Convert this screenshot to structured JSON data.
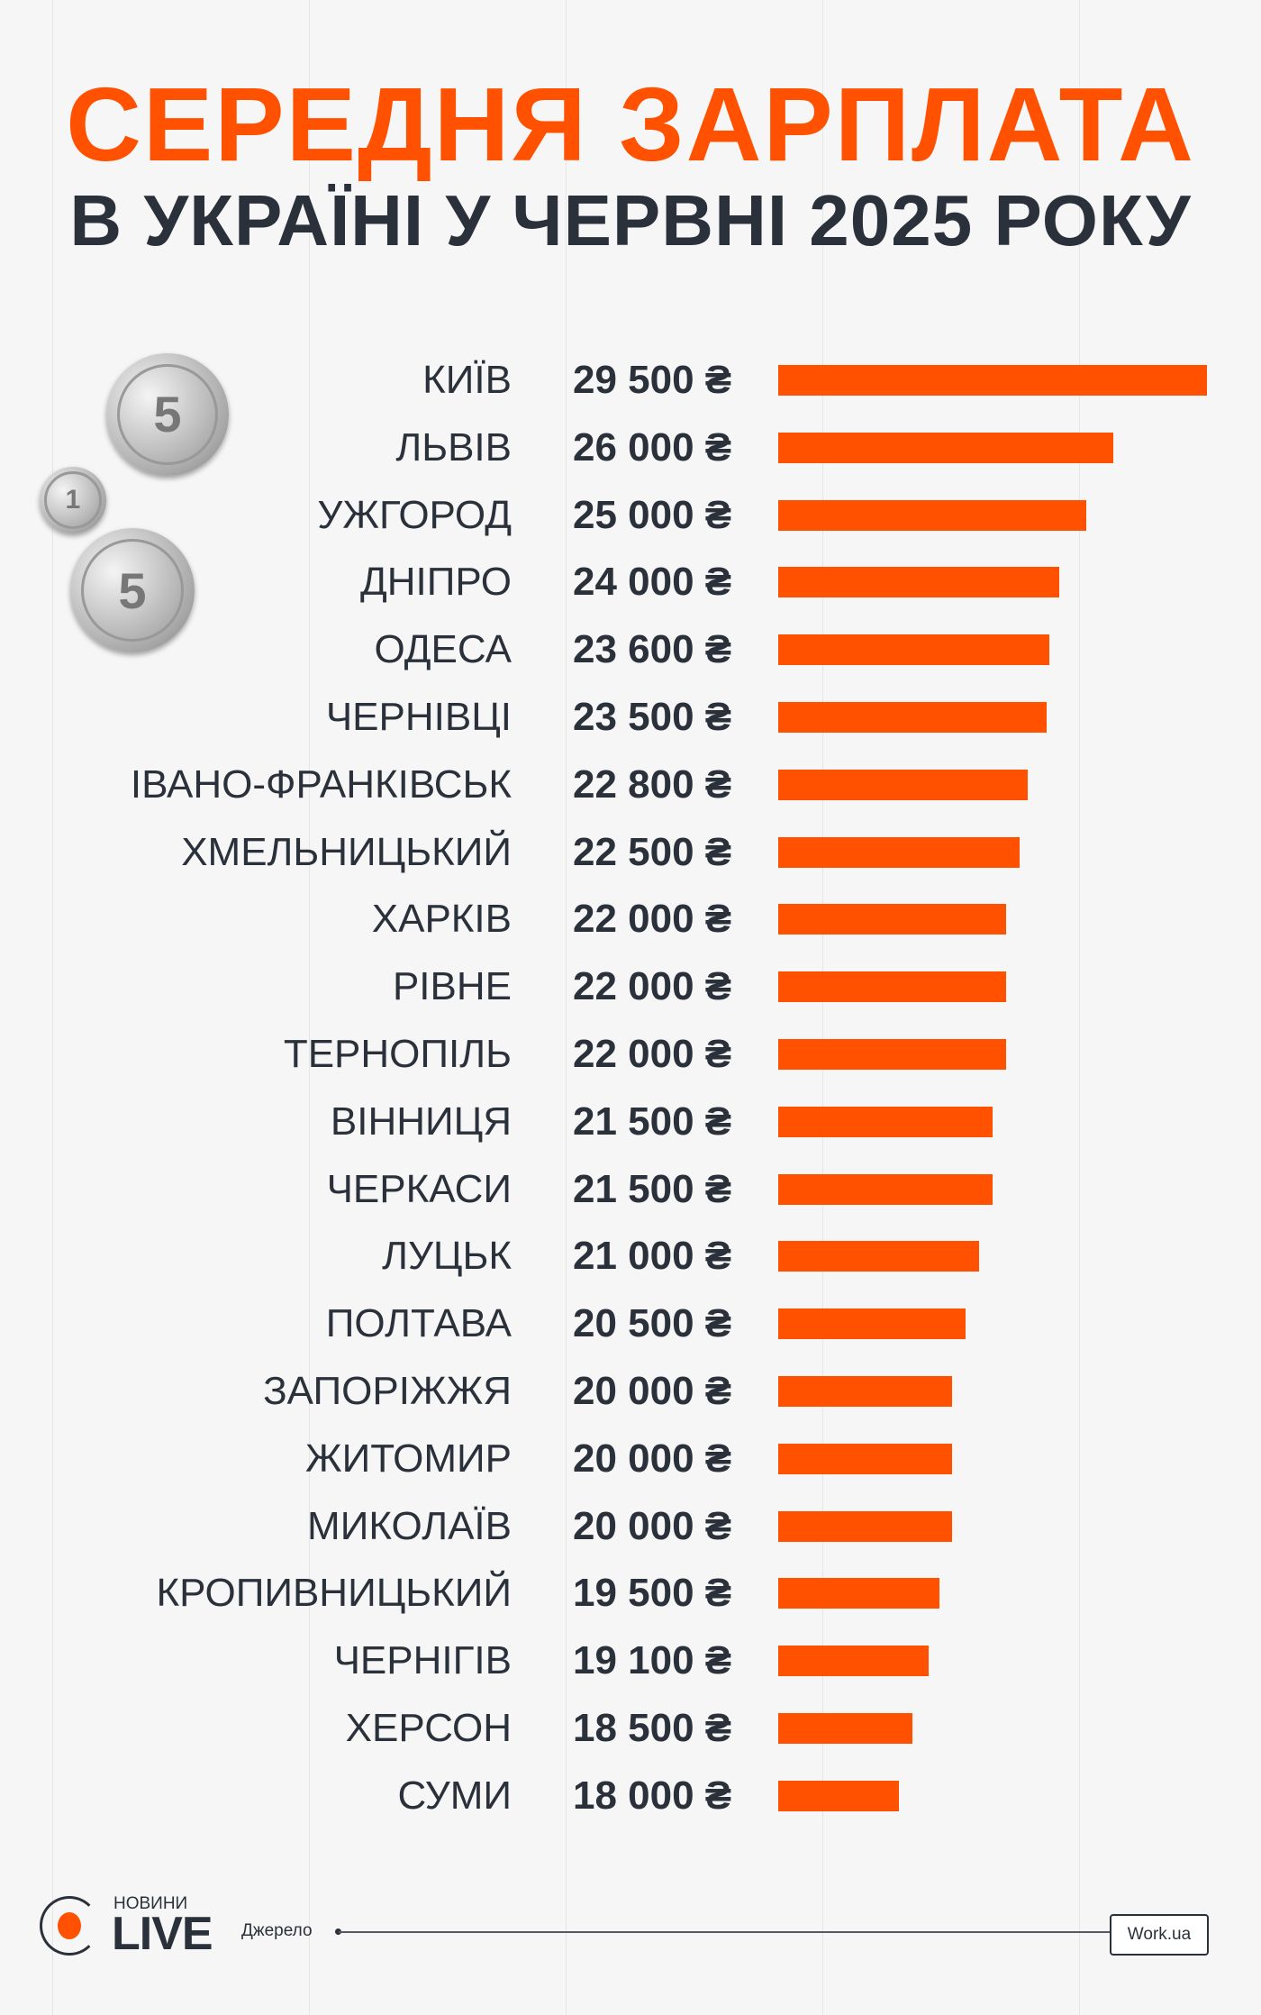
{
  "title": {
    "line1": "СЕРЕДНЯ ЗАРПЛАТА",
    "line2": "В УКРАЇНІ У ЧЕРВНІ 2025 РОКУ"
  },
  "colors": {
    "accent": "#ff5100",
    "text": "#2b313b",
    "background": "#f6f6f6"
  },
  "chart_data": {
    "type": "bar",
    "orientation": "horizontal",
    "unit": "₴",
    "categories": [
      "КИЇВ",
      "ЛЬВІВ",
      "УЖГОРОД",
      "ДНІПРО",
      "ОДЕСА",
      "ЧЕРНІВЦІ",
      "ІВАНО-ФРАНКІВСЬК",
      "ХМЕЛЬНИЦЬКИЙ",
      "ХАРКІВ",
      "РІВНЕ",
      "ТЕРНОПІЛЬ",
      "ВІННИЦЯ",
      "ЧЕРКАСИ",
      "ЛУЦЬК",
      "ПОЛТАВА",
      "ЗАПОРІЖЖЯ",
      "ЖИТОМИР",
      "МИКОЛАЇВ",
      "КРОПИВНИЦЬКИЙ",
      "ЧЕРНІГІВ",
      "ХЕРСОН",
      "СУМИ"
    ],
    "values": [
      29500,
      26000,
      25000,
      24000,
      23600,
      23500,
      22800,
      22500,
      22000,
      22000,
      22000,
      21500,
      21500,
      21000,
      20500,
      20000,
      20000,
      20000,
      19500,
      19100,
      18500,
      18000
    ],
    "labels": [
      "29 500 ₴",
      "26 000 ₴",
      "25 000 ₴",
      "24 000 ₴",
      "23 600 ₴",
      "23 500 ₴",
      "22 800 ₴",
      "22 500 ₴",
      "22 000 ₴",
      "22 000 ₴",
      "22 000 ₴",
      "21 500 ₴",
      "21 500 ₴",
      "21 000 ₴",
      "20 500 ₴",
      "20 000 ₴",
      "20 000 ₴",
      "20 000 ₴",
      "19 500 ₴",
      "19 100 ₴",
      "18 500 ₴",
      "18 000 ₴"
    ],
    "bar_color": "#ff5100"
  },
  "footer": {
    "logo_small": "НОВИНИ",
    "logo_big": "LIVE",
    "source_label": "Джерело",
    "source": "Work.ua"
  },
  "coins": [
    "5",
    "1",
    "5"
  ]
}
